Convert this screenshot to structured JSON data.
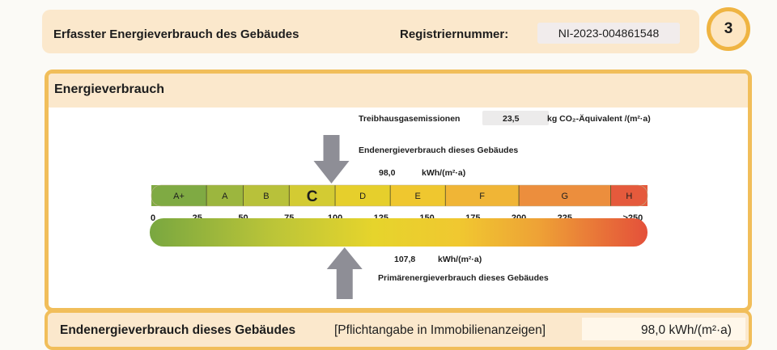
{
  "header": {
    "title": "Erfasster Energieverbrauch des Gebäudes",
    "registration_label": "Registriernummer:",
    "registration_number": "NI-2023-004861548",
    "page_number": "3"
  },
  "section": {
    "title": "Energieverbrauch",
    "emissions_label": "Treibhausgasemissionen",
    "emissions_value": "23,5",
    "emissions_unit": "kg CO₂-Äquivalent /(m²·a)",
    "final_energy_label": "Endenergieverbrauch dieses Gebäudes",
    "final_energy_value": "98,0",
    "final_energy_unit": "kWh/(m²·a)",
    "primary_energy_value": "107,8",
    "primary_energy_unit": "kWh/(m²·a)",
    "primary_energy_label": "Primärenergieverbrauch dieses Gebäudes"
  },
  "scale": {
    "classes": [
      {
        "label": "A+",
        "from": 0,
        "to": 30,
        "color": "#7faa43"
      },
      {
        "label": "A",
        "from": 30,
        "to": 50,
        "color": "#9cb63e"
      },
      {
        "label": "B",
        "from": 50,
        "to": 75,
        "color": "#b8c13a"
      },
      {
        "label": "C",
        "from": 75,
        "to": 100,
        "color": "#d3cb33"
      },
      {
        "label": "D",
        "from": 100,
        "to": 130,
        "color": "#e6cf2c"
      },
      {
        "label": "E",
        "from": 130,
        "to": 160,
        "color": "#efc72f"
      },
      {
        "label": "F",
        "from": 160,
        "to": 200,
        "color": "#f0b536"
      },
      {
        "label": "G",
        "from": 200,
        "to": 250,
        "color": "#ec8e3d"
      },
      {
        "label": "H",
        "from": 250,
        "to": 270,
        "color": "#e55a3c"
      }
    ],
    "current_class": "C",
    "ticks": [
      "0",
      "25",
      "50",
      "75",
      "100",
      "125",
      "150",
      "175",
      "200",
      "225",
      ">250"
    ],
    "tick_values": [
      0,
      25,
      50,
      75,
      100,
      125,
      150,
      175,
      200,
      225,
      262
    ],
    "max_value": 270,
    "final_energy": 98.0,
    "primary_energy": 107.8
  },
  "footer": {
    "title": "Endenergieverbrauch dieses Gebäudes",
    "note": "[Pflichtangabe in Immobilienanzeigen]",
    "value": "98,0 kWh/(m²·a)"
  }
}
